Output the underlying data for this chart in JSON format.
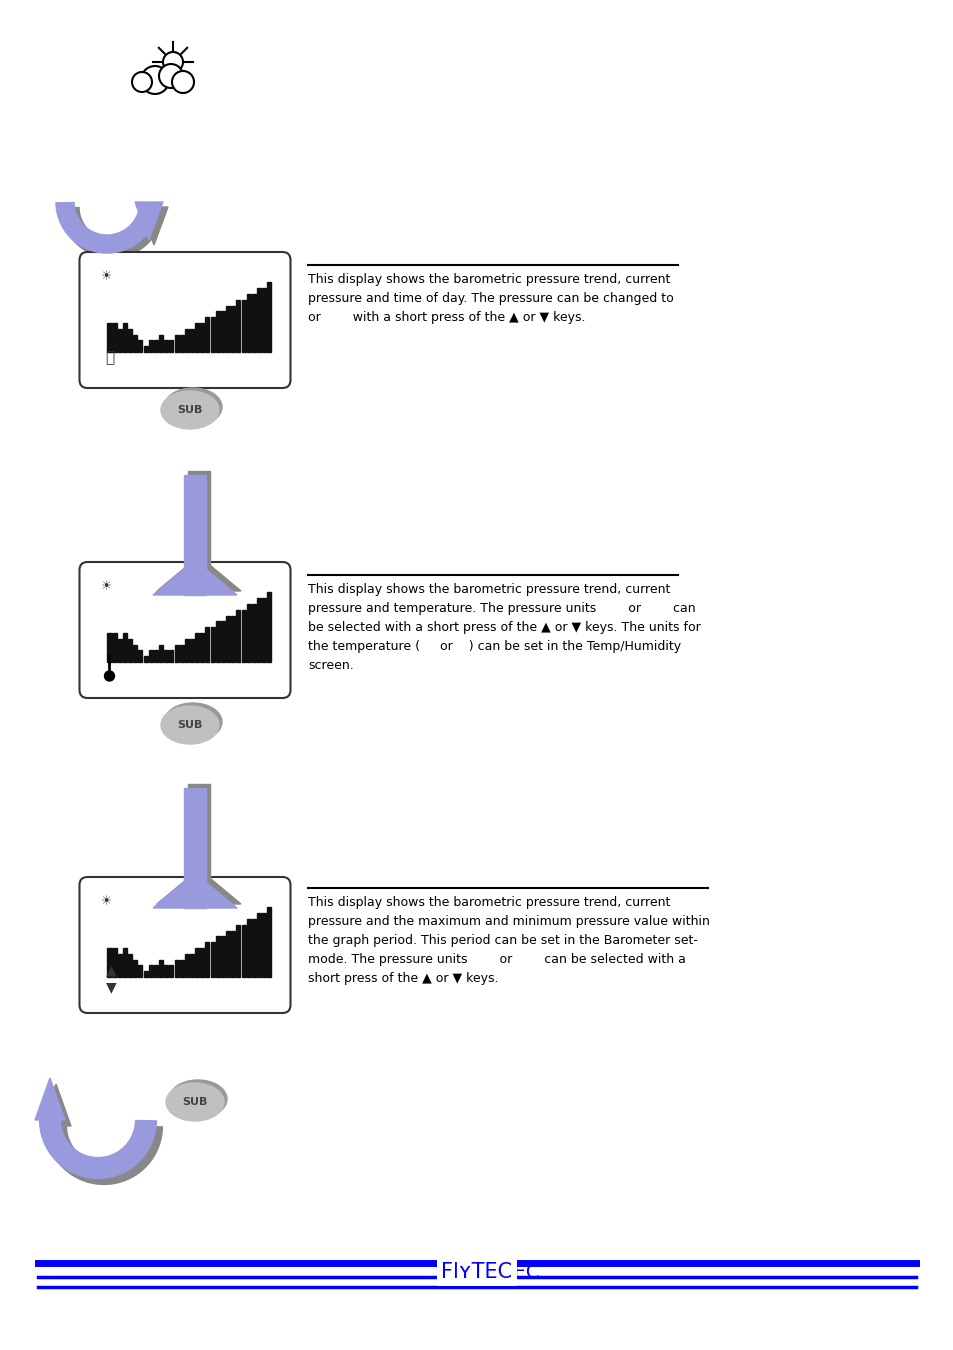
{
  "bg_color": "#ffffff",
  "page_width": 9.54,
  "page_height": 13.5,
  "flytec_color": "#0000ff",
  "arrow_color": "#9999dd",
  "arrow_shadow": "#888888",
  "text_color": "#000000",
  "text1": "This display shows the barometric pressure trend, current\npressure and time of day. The pressure can be changed to\nor        with a short press of the ▲ or ▼ keys.",
  "text2": "This display shows the barometric pressure trend, current\npressure and temperature. The pressure units        or        can\nbe selected with a short press of the ▲ or ▼ keys. The units for\nthe temperature (     or    ) can be set in the Temp/Humidity\nscreen.",
  "text3": "This display shows the barometric pressure trend, current\npressure and the maximum and minimum pressure value within\nthe graph period. This period can be set in the Barometer set-\nmode. The pressure units        or        can be selected with a\nshort press of the ▲ or ▼ keys.",
  "bar_heights": [
    5,
    5,
    4,
    5,
    4,
    3,
    2,
    1,
    2,
    2,
    3,
    2,
    2,
    3,
    3,
    4,
    4,
    5,
    5,
    6,
    6,
    7,
    7,
    8,
    8,
    9,
    9,
    10,
    10,
    11,
    11,
    12
  ]
}
